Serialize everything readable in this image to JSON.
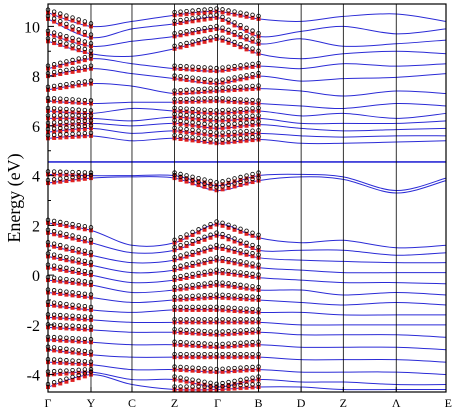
{
  "chart_data": {
    "type": "line",
    "ylabel": "Energy (eV)",
    "xlabel": "",
    "ylim": [
      -4.7,
      10.9
    ],
    "yticks": [
      -4,
      -2,
      0,
      2,
      4,
      6,
      8,
      10
    ],
    "kpoints": [
      "Γ",
      "Y",
      "C",
      "Z",
      "Γ",
      "B",
      "D",
      "Z",
      "Λ",
      "E"
    ],
    "kpoint_positions": [
      0.0,
      0.108,
      0.211,
      0.318,
      0.426,
      0.529,
      0.636,
      0.742,
      0.875,
      1.0
    ],
    "grid": false,
    "horizontal_reference_line": 4.55,
    "series": [
      {
        "color": "#2b2bd6",
        "style": "line"
      },
      {
        "color": "#e02020",
        "style": "markers-square"
      },
      {
        "color": "#000000",
        "style": "markers-open-circle"
      }
    ],
    "bands": [
      {
        "x": [
          0.0,
          0.108,
          0.211,
          0.318,
          0.426,
          0.529,
          0.636,
          0.742,
          0.875,
          1.0
        ],
        "y": [
          10.55,
          10.0,
          10.2,
          10.45,
          10.6,
          10.3,
          10.2,
          10.4,
          10.5,
          10.2
        ]
      },
      {
        "x": [
          0.0,
          0.108,
          0.211,
          0.318,
          0.426,
          0.529,
          0.636,
          0.742,
          0.875,
          1.0
        ],
        "y": [
          10.3,
          9.55,
          9.9,
          10.1,
          10.35,
          9.6,
          9.8,
          10.0,
          9.7,
          9.9
        ]
      },
      {
        "x": [
          0.0,
          0.108,
          0.211,
          0.318,
          0.426,
          0.529,
          0.636,
          0.742,
          0.875,
          1.0
        ],
        "y": [
          9.7,
          9.2,
          9.4,
          9.6,
          9.9,
          9.3,
          9.5,
          9.2,
          9.3,
          9.45
        ]
      },
      {
        "x": [
          0.0,
          0.108,
          0.211,
          0.318,
          0.426,
          0.529,
          0.636,
          0.742,
          0.875,
          1.0
        ],
        "y": [
          9.4,
          8.9,
          8.8,
          9.1,
          9.5,
          8.9,
          8.7,
          8.9,
          9.0,
          8.9
        ]
      },
      {
        "x": [
          0.0,
          0.108,
          0.211,
          0.318,
          0.426,
          0.529,
          0.636,
          0.742,
          0.875,
          1.0
        ],
        "y": [
          8.3,
          8.7,
          8.5,
          8.3,
          8.2,
          8.4,
          8.3,
          8.5,
          8.4,
          8.5
        ]
      },
      {
        "x": [
          0.0,
          0.108,
          0.211,
          0.318,
          0.426,
          0.529,
          0.636,
          0.742,
          0.875,
          1.0
        ],
        "y": [
          8.0,
          8.3,
          8.1,
          7.9,
          7.7,
          8.0,
          7.8,
          7.9,
          7.95,
          8.1
        ]
      },
      {
        "x": [
          0.0,
          0.108,
          0.211,
          0.318,
          0.426,
          0.529,
          0.636,
          0.742,
          0.875,
          1.0
        ],
        "y": [
          7.45,
          7.7,
          7.6,
          7.3,
          7.4,
          7.5,
          7.4,
          7.2,
          7.4,
          7.3
        ]
      },
      {
        "x": [
          0.0,
          0.108,
          0.211,
          0.318,
          0.426,
          0.529,
          0.636,
          0.742,
          0.875,
          1.0
        ],
        "y": [
          7.0,
          6.9,
          6.95,
          6.95,
          7.0,
          6.9,
          6.8,
          6.7,
          6.9,
          6.8
        ]
      },
      {
        "x": [
          0.0,
          0.108,
          0.211,
          0.318,
          0.426,
          0.529,
          0.636,
          0.742,
          0.875,
          1.0
        ],
        "y": [
          6.6,
          6.5,
          6.7,
          6.6,
          6.5,
          6.6,
          6.4,
          6.5,
          6.3,
          6.5
        ]
      },
      {
        "x": [
          0.0,
          0.108,
          0.211,
          0.318,
          0.426,
          0.529,
          0.636,
          0.742,
          0.875,
          1.0
        ],
        "y": [
          6.3,
          6.3,
          6.2,
          6.35,
          6.2,
          6.3,
          6.1,
          6.1,
          6.1,
          6.2
        ]
      },
      {
        "x": [
          0.0,
          0.108,
          0.211,
          0.318,
          0.426,
          0.529,
          0.636,
          0.742,
          0.875,
          1.0
        ],
        "y": [
          6.0,
          6.1,
          6.0,
          6.1,
          5.9,
          6.05,
          5.9,
          5.8,
          5.85,
          5.9
        ]
      },
      {
        "x": [
          0.0,
          0.108,
          0.211,
          0.318,
          0.426,
          0.529,
          0.636,
          0.742,
          0.875,
          1.0
        ],
        "y": [
          5.75,
          5.9,
          5.7,
          5.8,
          5.6,
          5.7,
          5.6,
          5.55,
          5.6,
          5.6
        ]
      },
      {
        "x": [
          0.0,
          0.108,
          0.211,
          0.318,
          0.426,
          0.529,
          0.636,
          0.742,
          0.875,
          1.0
        ],
        "y": [
          5.5,
          5.6,
          5.4,
          5.5,
          5.3,
          5.45,
          5.3,
          5.3,
          5.35,
          5.4
        ]
      },
      {
        "x": [
          0.0,
          0.108,
          0.211,
          0.318,
          0.426,
          0.529,
          0.636,
          0.742,
          0.875,
          1.0
        ],
        "y": [
          4.05,
          4.0,
          4.0,
          4.0,
          3.6,
          4.0,
          4.05,
          3.95,
          3.4,
          3.9
        ]
      },
      {
        "x": [
          0.0,
          0.108,
          0.211,
          0.318,
          0.426,
          0.529,
          0.636,
          0.742,
          0.875,
          1.0
        ],
        "y": [
          3.7,
          3.9,
          3.95,
          3.9,
          3.4,
          3.8,
          3.95,
          3.85,
          3.3,
          3.8
        ]
      },
      {
        "x": [
          0.0,
          0.108,
          0.211,
          0.318,
          0.426,
          0.529,
          0.636,
          0.742,
          0.875,
          1.0
        ],
        "y": [
          2.1,
          1.8,
          1.2,
          1.3,
          2.05,
          1.5,
          1.3,
          1.4,
          1.1,
          1.2
        ]
      },
      {
        "x": [
          0.0,
          0.108,
          0.211,
          0.318,
          0.426,
          0.529,
          0.636,
          0.742,
          0.875,
          1.0
        ],
        "y": [
          1.7,
          1.3,
          0.9,
          1.0,
          1.6,
          1.0,
          1.0,
          1.0,
          0.8,
          0.9
        ]
      },
      {
        "x": [
          0.0,
          0.108,
          0.211,
          0.318,
          0.426,
          0.529,
          0.636,
          0.742,
          0.875,
          1.0
        ],
        "y": [
          1.2,
          0.8,
          0.5,
          0.6,
          1.1,
          0.7,
          0.6,
          0.55,
          0.5,
          0.5
        ]
      },
      {
        "x": [
          0.0,
          0.108,
          0.211,
          0.318,
          0.426,
          0.529,
          0.636,
          0.742,
          0.875,
          1.0
        ],
        "y": [
          0.75,
          0.4,
          0.1,
          0.2,
          0.6,
          0.3,
          0.2,
          0.1,
          0.1,
          0.1
        ]
      },
      {
        "x": [
          0.0,
          0.108,
          0.211,
          0.318,
          0.426,
          0.529,
          0.636,
          0.742,
          0.875,
          1.0
        ],
        "y": [
          0.3,
          0.0,
          -0.3,
          -0.2,
          0.1,
          -0.1,
          -0.2,
          -0.3,
          -0.3,
          -0.35
        ]
      },
      {
        "x": [
          0.0,
          0.108,
          0.211,
          0.318,
          0.426,
          0.529,
          0.636,
          0.742,
          0.875,
          1.0
        ],
        "y": [
          -0.2,
          -0.4,
          -0.7,
          -0.6,
          -0.4,
          -0.6,
          -0.6,
          -0.8,
          -0.7,
          -0.8
        ]
      },
      {
        "x": [
          0.0,
          0.108,
          0.211,
          0.318,
          0.426,
          0.529,
          0.636,
          0.742,
          0.875,
          1.0
        ],
        "y": [
          -0.7,
          -0.9,
          -1.1,
          -1.0,
          -0.9,
          -1.0,
          -1.1,
          -1.2,
          -1.1,
          -1.2
        ]
      },
      {
        "x": [
          0.0,
          0.108,
          0.211,
          0.318,
          0.426,
          0.529,
          0.636,
          0.742,
          0.875,
          1.0
        ],
        "y": [
          -1.2,
          -1.4,
          -1.5,
          -1.4,
          -1.4,
          -1.5,
          -1.5,
          -1.6,
          -1.6,
          -1.6
        ]
      },
      {
        "x": [
          0.0,
          0.108,
          0.211,
          0.318,
          0.426,
          0.529,
          0.636,
          0.742,
          0.875,
          1.0
        ],
        "y": [
          -1.7,
          -1.8,
          -1.9,
          -1.9,
          -1.9,
          -1.9,
          -2.0,
          -2.0,
          -2.0,
          -2.0
        ]
      },
      {
        "x": [
          0.0,
          0.108,
          0.211,
          0.318,
          0.426,
          0.529,
          0.636,
          0.742,
          0.875,
          1.0
        ],
        "y": [
          -2.1,
          -2.2,
          -2.3,
          -2.3,
          -2.4,
          -2.3,
          -2.4,
          -2.4,
          -2.4,
          -2.5
        ]
      },
      {
        "x": [
          0.0,
          0.108,
          0.211,
          0.318,
          0.426,
          0.529,
          0.636,
          0.742,
          0.875,
          1.0
        ],
        "y": [
          -2.6,
          -2.7,
          -2.8,
          -2.8,
          -2.9,
          -2.8,
          -2.9,
          -2.9,
          -2.9,
          -3.0
        ]
      },
      {
        "x": [
          0.0,
          0.108,
          0.211,
          0.318,
          0.426,
          0.529,
          0.636,
          0.742,
          0.875,
          1.0
        ],
        "y": [
          -3.0,
          -3.2,
          -3.3,
          -3.3,
          -3.3,
          -3.3,
          -3.4,
          -3.4,
          -3.4,
          -3.5
        ]
      },
      {
        "x": [
          0.0,
          0.108,
          0.211,
          0.318,
          0.426,
          0.529,
          0.636,
          0.742,
          0.875,
          1.0
        ],
        "y": [
          -3.5,
          -3.6,
          -3.8,
          -3.8,
          -3.9,
          -3.8,
          -3.9,
          -3.9,
          -3.9,
          -4.0
        ]
      },
      {
        "x": [
          0.0,
          0.108,
          0.211,
          0.318,
          0.426,
          0.529,
          0.636,
          0.742,
          0.875,
          1.0
        ],
        "y": [
          -4.0,
          -3.9,
          -4.2,
          -4.2,
          -4.5,
          -4.2,
          -4.3,
          -4.3,
          -4.4,
          -4.4
        ]
      },
      {
        "x": [
          0.0,
          0.108,
          0.211,
          0.318,
          0.426,
          0.529,
          0.636,
          0.742,
          0.875,
          1.0
        ],
        "y": [
          -4.5,
          -4.0,
          -4.4,
          -4.6,
          -4.6,
          -4.5,
          -4.5,
          -4.6,
          -4.6,
          -4.6
        ]
      }
    ]
  }
}
